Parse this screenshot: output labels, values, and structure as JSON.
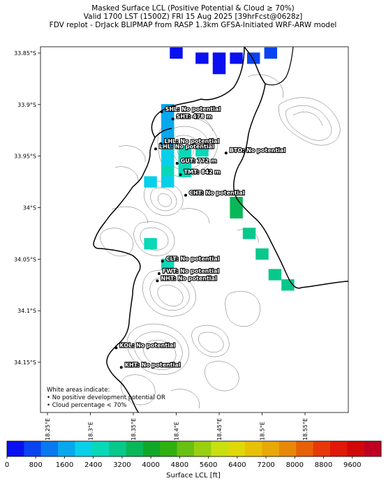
{
  "header": {
    "line1": "Masked Surface LCL (Positive Potential & Cloud ≥ 70%)",
    "line2": "Valid 1700 LST (1500Z) FRI 15 Aug 2025 [39hrFcst@0628z]",
    "line3": "FDV replot - DrJack BLIPMAP from RASP 1.3km GFSA-Initiated WRF-ARW model"
  },
  "axes": {
    "lat_ticks": [
      "33.85°S",
      "33.9°S",
      "33.95°S",
      "34°S",
      "34.05°S",
      "34.1°S",
      "34.15°S"
    ],
    "lon_ticks": [
      "18.25°E",
      "18.3°E",
      "18.35°E",
      "18.4°E",
      "18.45°E",
      "18.5°E",
      "18.55°E"
    ]
  },
  "sites": [
    {
      "label": "SHL: No potential",
      "lon": 18.383,
      "lat": 33.907
    },
    {
      "label": "SHT: 478 m",
      "lon": 18.396,
      "lat": 33.914
    },
    {
      "label": "LHL: No potential",
      "lon": 18.382,
      "lat": 33.938
    },
    {
      "label": "LHL: No potential",
      "lon": 18.376,
      "lat": 33.943
    },
    {
      "label": "BTO: No potential",
      "lon": 18.458,
      "lat": 33.947
    },
    {
      "label": "GUT: 772 m",
      "lon": 18.401,
      "lat": 33.957
    },
    {
      "label": "TMT: 842 m",
      "lon": 18.405,
      "lat": 33.968
    },
    {
      "label": "CHT: No potential",
      "lon": 18.411,
      "lat": 33.988
    },
    {
      "label": "CLT: No potential",
      "lon": 18.384,
      "lat": 34.052
    },
    {
      "label": "FWT: No potential",
      "lon": 18.38,
      "lat": 34.064
    },
    {
      "label": "NHT: No potential",
      "lon": 18.378,
      "lat": 34.071
    },
    {
      "label": "KOL: No potential",
      "lon": 18.33,
      "lat": 34.136
    },
    {
      "label": "KHT: No potential",
      "lon": 18.336,
      "lat": 34.155
    }
  ],
  "legend_note": {
    "line1": "White areas indicate:",
    "line2": "• No positive development potential OR",
    "line3": "• Cloud percentage < 70%"
  },
  "colorbar": {
    "label": "Surface LCL [ft]",
    "tick_labels": [
      "0",
      "800",
      "1600",
      "2400",
      "3200",
      "4000",
      "4800",
      "5600",
      "6400",
      "7200",
      "8000",
      "8800",
      "9600"
    ],
    "colors": [
      "#0a10f0",
      "#0a44f0",
      "#0a78ee",
      "#08a8ee",
      "#08d0e8",
      "#08d8b8",
      "#08c88c",
      "#08b858",
      "#10a828",
      "#30b010",
      "#68c010",
      "#98d010",
      "#c8e010",
      "#e0d808",
      "#e8c008",
      "#e8a808",
      "#e88808",
      "#e86008",
      "#e83808",
      "#e01808",
      "#d00808",
      "#c00020"
    ]
  },
  "lcl_cells_ft": [
    {
      "lon": 18.4,
      "lat": 33.85,
      "v": 200
    },
    {
      "lon": 18.43,
      "lat": 33.855,
      "v": 200
    },
    {
      "lon": 18.45,
      "lat": 33.855,
      "v": 200
    },
    {
      "lon": 18.47,
      "lat": 33.855,
      "v": 300
    },
    {
      "lon": 18.45,
      "lat": 33.865,
      "v": 300
    },
    {
      "lon": 18.49,
      "lat": 33.855,
      "v": 500
    },
    {
      "lon": 18.51,
      "lat": 33.85,
      "v": 600
    },
    {
      "lon": 18.39,
      "lat": 33.905,
      "v": 1700
    },
    {
      "lon": 18.39,
      "lat": 33.915,
      "v": 1700
    },
    {
      "lon": 18.39,
      "lat": 33.925,
      "v": 1600
    },
    {
      "lon": 18.39,
      "lat": 33.935,
      "v": 1600
    },
    {
      "lon": 18.39,
      "lat": 33.945,
      "v": 1900
    },
    {
      "lon": 18.41,
      "lat": 33.945,
      "v": 2600
    },
    {
      "lon": 18.43,
      "lat": 33.945,
      "v": 2700
    },
    {
      "lon": 18.39,
      "lat": 33.955,
      "v": 2200
    },
    {
      "lon": 18.41,
      "lat": 33.955,
      "v": 2600
    },
    {
      "lon": 18.39,
      "lat": 33.965,
      "v": 2400
    },
    {
      "lon": 18.41,
      "lat": 33.965,
      "v": 2500
    },
    {
      "lon": 18.37,
      "lat": 33.975,
      "v": 2200
    },
    {
      "lon": 18.39,
      "lat": 33.975,
      "v": 2300
    },
    {
      "lon": 18.37,
      "lat": 34.035,
      "v": 2500
    },
    {
      "lon": 18.39,
      "lat": 34.055,
      "v": 2600
    },
    {
      "lon": 18.47,
      "lat": 33.995,
      "v": 3400
    },
    {
      "lon": 18.47,
      "lat": 34.005,
      "v": 3400
    },
    {
      "lon": 18.485,
      "lat": 34.025,
      "v": 3200
    },
    {
      "lon": 18.5,
      "lat": 34.045,
      "v": 3300
    },
    {
      "lon": 18.515,
      "lat": 34.065,
      "v": 3200
    },
    {
      "lon": 18.53,
      "lat": 34.075,
      "v": 3000
    }
  ]
}
